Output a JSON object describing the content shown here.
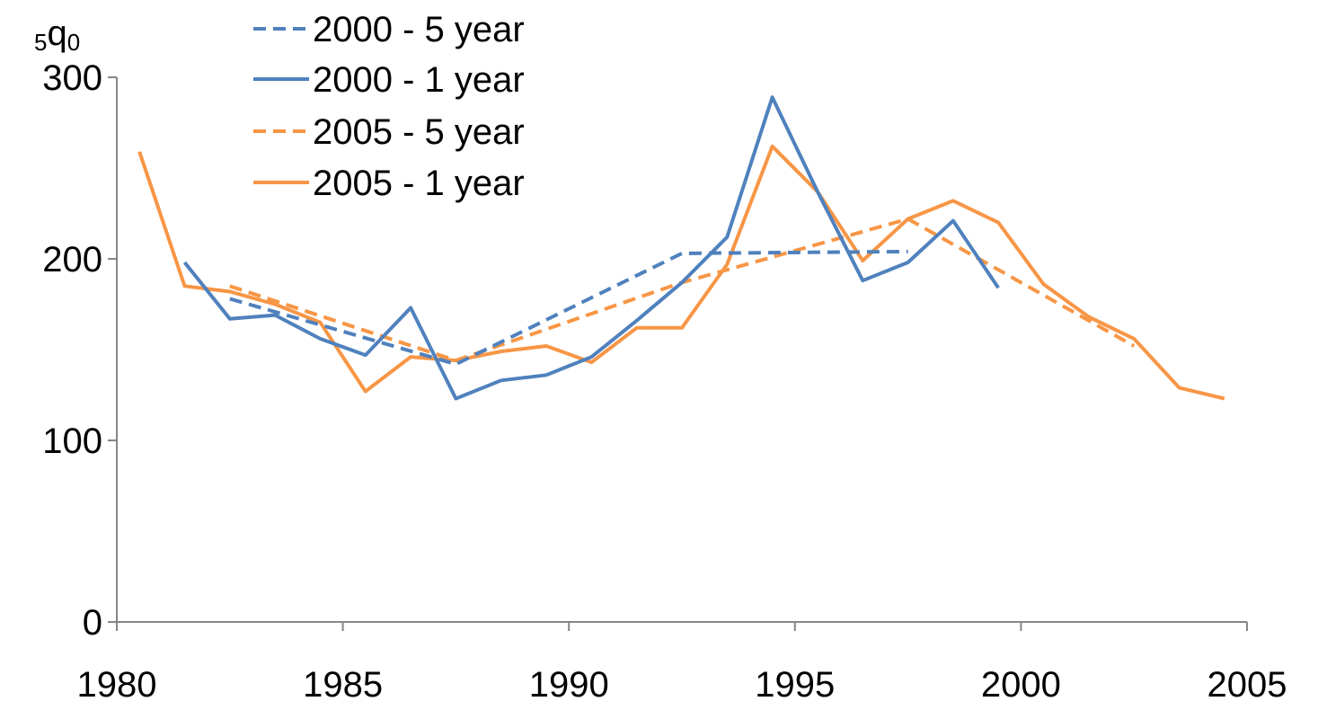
{
  "chart_data": {
    "type": "line",
    "title": "",
    "xlabel": "",
    "ylabel": {
      "main": "q",
      "pre_subscript": "5",
      "post_subscript": "0"
    },
    "xlim": [
      1980,
      2005
    ],
    "ylim": [
      0,
      300
    ],
    "xticks": [
      "1980",
      "1985",
      "1990",
      "1995",
      "2000",
      "2005"
    ],
    "yticks": [
      "0",
      "100",
      "200",
      "300"
    ],
    "grid": false,
    "legend_position": "top-left",
    "series": [
      {
        "name": "2000 - 5 year",
        "color": "#4F81BD",
        "dash": "dashed",
        "x": [
          1982.5,
          1987.5,
          1992.5,
          1997.5
        ],
        "y": [
          178,
          142,
          203,
          204
        ]
      },
      {
        "name": "2000 - 1 year",
        "color": "#4F81BD",
        "dash": "solid",
        "x": [
          1981.5,
          1982.5,
          1983.5,
          1984.5,
          1985.5,
          1986.5,
          1987.5,
          1988.5,
          1989.5,
          1990.5,
          1991.5,
          1992.5,
          1993.5,
          1994.5,
          1995.5,
          1996.5,
          1997.5,
          1998.5,
          1999.5
        ],
        "y": [
          198,
          167,
          169,
          156,
          147,
          173,
          123,
          133,
          136,
          146,
          166,
          187,
          212,
          289,
          237,
          188,
          198,
          221,
          184
        ]
      },
      {
        "name": "2005 - 5 year",
        "color": "#F79646",
        "dash": "dashed",
        "x": [
          1982.5,
          1987.5,
          1992.5,
          1997.5,
          2002.5
        ],
        "y": [
          185,
          144,
          187,
          222,
          152
        ]
      },
      {
        "name": "2005 - 1 year",
        "color": "#F79646",
        "dash": "solid",
        "x": [
          1980.5,
          1981.5,
          1982.5,
          1983.5,
          1984.5,
          1985.5,
          1986.5,
          1987.5,
          1988.5,
          1989.5,
          1990.5,
          1991.5,
          1992.5,
          1993.5,
          1994.5,
          1995.5,
          1996.5,
          1997.5,
          1998.5,
          1999.5,
          2000.5,
          2001.5,
          2002.5,
          2003.5,
          2004.5
        ],
        "y": [
          259,
          185,
          182,
          175,
          165,
          127,
          146,
          144,
          149,
          152,
          143,
          162,
          162,
          197,
          262,
          237,
          199,
          222,
          232,
          220,
          186,
          168,
          156,
          129,
          123
        ]
      }
    ]
  }
}
